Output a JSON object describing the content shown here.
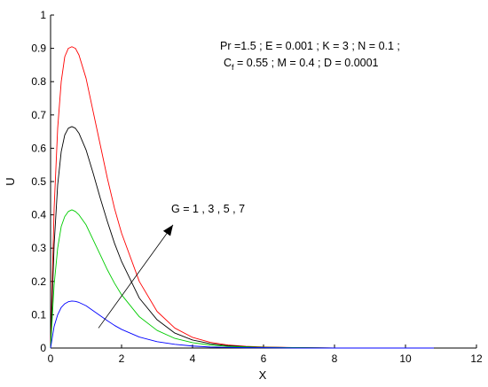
{
  "chart_data": {
    "type": "line",
    "title": "",
    "xlabel": "X",
    "ylabel": "U",
    "xlim": [
      0,
      12
    ],
    "ylim": [
      0,
      1
    ],
    "xticks": [
      0,
      2,
      4,
      6,
      8,
      10,
      12
    ],
    "yticks": [
      0,
      0.1,
      0.2,
      0.3,
      0.4,
      0.5,
      0.6,
      0.7,
      0.8,
      0.9,
      1
    ],
    "grid": false,
    "legend": "none",
    "x": [
      0,
      0.1,
      0.2,
      0.3,
      0.4,
      0.5,
      0.6,
      0.7,
      0.8,
      1.0,
      1.2,
      1.4,
      1.6,
      1.8,
      2.0,
      2.5,
      3.0,
      3.5,
      4.0,
      4.5,
      5.0,
      5.5,
      6.0,
      7.0,
      8.0,
      9.0,
      10.0,
      10.8
    ],
    "series": [
      {
        "color": "#ff0000",
        "values": [
          0,
          0.42,
          0.66,
          0.8,
          0.875,
          0.9,
          0.905,
          0.9,
          0.88,
          0.81,
          0.71,
          0.61,
          0.51,
          0.42,
          0.345,
          0.2,
          0.11,
          0.06,
          0.032,
          0.017,
          0.009,
          0.005,
          0.003,
          0.001,
          0.0,
          0.0,
          0.0,
          0.0
        ]
      },
      {
        "color": "#000000",
        "values": [
          0,
          0.31,
          0.49,
          0.59,
          0.64,
          0.66,
          0.665,
          0.66,
          0.645,
          0.595,
          0.525,
          0.45,
          0.38,
          0.315,
          0.26,
          0.15,
          0.085,
          0.045,
          0.024,
          0.013,
          0.007,
          0.004,
          0.002,
          0.001,
          0.0,
          0.0,
          0.0,
          0.0
        ]
      },
      {
        "color": "#00cc00",
        "values": [
          0,
          0.19,
          0.3,
          0.365,
          0.395,
          0.41,
          0.415,
          0.41,
          0.4,
          0.37,
          0.325,
          0.28,
          0.235,
          0.195,
          0.16,
          0.094,
          0.053,
          0.029,
          0.016,
          0.009,
          0.005,
          0.003,
          0.002,
          0.001,
          0.0,
          0.0,
          0.0,
          0.0
        ]
      },
      {
        "color": "#0000ff",
        "values": [
          0,
          0.065,
          0.1,
          0.122,
          0.133,
          0.139,
          0.141,
          0.14,
          0.137,
          0.127,
          0.112,
          0.097,
          0.082,
          0.068,
          0.056,
          0.033,
          0.019,
          0.011,
          0.006,
          0.003,
          0.002,
          0.001,
          0.001,
          0.0,
          0.0,
          0.0,
          0.0,
          0.0
        ]
      }
    ],
    "annotations": {
      "params_line1": "Pr =1.5 ;  E = 0.001 ; K = 3 ; N = 0.1 ;",
      "params_line2_c": "C",
      "params_line2_sub": "f",
      "params_line2_rest": " = 0.55 ; M = 0.4 ; D = 0.0001",
      "arrow_label": "G = 1 , 3 , 5 , 7",
      "arrow_from": [
        1.35,
        0.06
      ],
      "arrow_to": [
        3.45,
        0.37
      ]
    }
  }
}
